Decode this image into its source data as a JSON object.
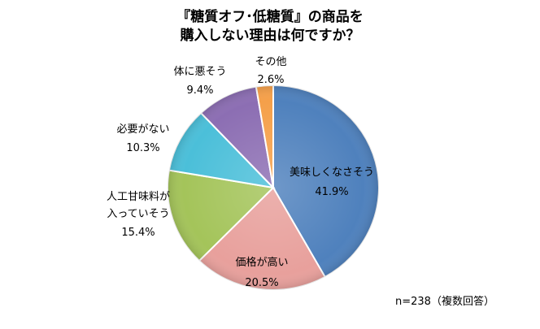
{
  "chart_data": {
    "type": "pie",
    "title_lines": [
      "『糖質オフ･低糖質』の商品を",
      "購入しない理由は何ですか？"
    ],
    "slices": [
      {
        "label": "美味しくなさそう",
        "value": 41.9,
        "display": "41.9%",
        "color": "#4f81bd"
      },
      {
        "label": "価格が高い",
        "value": 20.5,
        "display": "20.5%",
        "color": "#e8a09c"
      },
      {
        "label_lines": [
          "人工甘味料が",
          "入っていそう"
        ],
        "value": 15.4,
        "display": "15.4%",
        "color": "#a4c45a"
      },
      {
        "label": "必要がない",
        "value": 10.3,
        "display": "10.3%",
        "color": "#4bbfd9"
      },
      {
        "label": "体に悪そう",
        "value": 9.4,
        "display": "9.4%",
        "color": "#8c6eb3"
      },
      {
        "label": "その他",
        "value": 2.6,
        "display": "2.6%",
        "color": "#f5a04a"
      }
    ],
    "note": "n=238（複数回答）"
  }
}
